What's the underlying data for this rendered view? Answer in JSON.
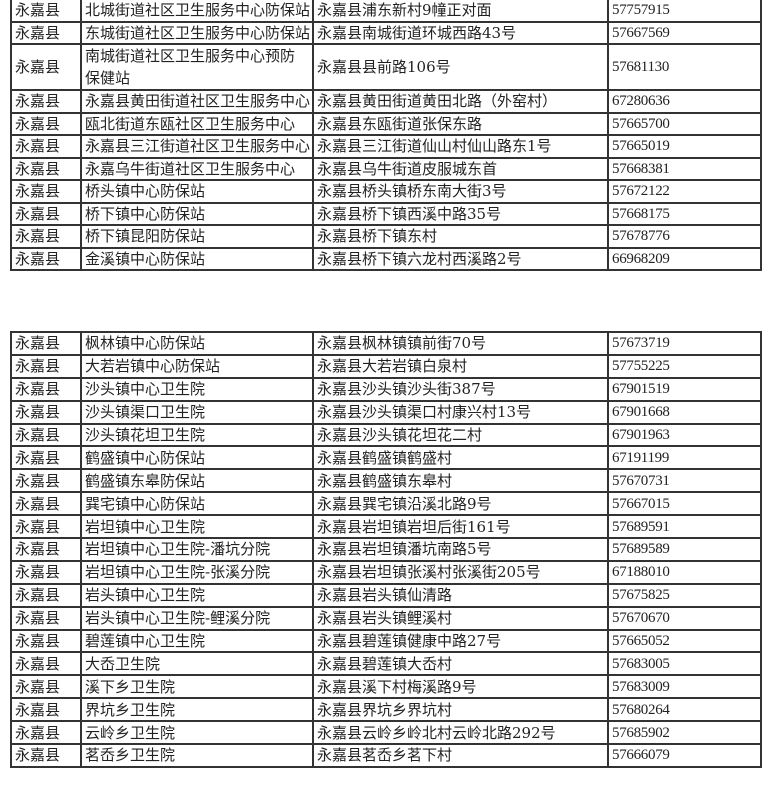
{
  "tables": [
    {
      "rows": [
        [
          "永嘉县",
          "北城街道社区卫生服务中心防保站",
          "永嘉县浦东新村9幢正对面",
          "57757915"
        ],
        [
          "永嘉县",
          "东城街道社区卫生服务中心防保站",
          "永嘉县南城街道环城西路43号",
          "57667569"
        ],
        [
          "永嘉县",
          "南城街道社区卫生服务中心预防保健站",
          "永嘉县县前路106号",
          "57681130"
        ],
        [
          "永嘉县",
          "永嘉县黄田街道社区卫生服务中心",
          "永嘉县黄田街道黄田北路（外窑村）",
          "67280636"
        ],
        [
          "永嘉县",
          "瓯北街道东瓯社区卫生服务中心",
          "永嘉县东瓯街道张保东路",
          "57665700"
        ],
        [
          "永嘉县",
          "永嘉县三江街道社区卫生服务中心",
          "永嘉县三江街道仙山村仙山路东1号",
          "57665019"
        ],
        [
          "永嘉县",
          "永嘉乌牛街道社区卫生服务中心",
          "永嘉县乌牛街道皮服城东首",
          "57668381"
        ],
        [
          "永嘉县",
          "桥头镇中心防保站",
          "永嘉县桥头镇桥东南大街3号",
          "57672122"
        ],
        [
          "永嘉县",
          "桥下镇中心防保站",
          "永嘉县桥下镇西溪中路35号",
          "57668175"
        ],
        [
          "永嘉县",
          "桥下镇昆阳防保站",
          "永嘉县桥下镇东村",
          "57678776"
        ],
        [
          "永嘉县",
          "金溪镇中心防保站",
          "永嘉县桥下镇六龙村西溪路2号",
          "66968209"
        ]
      ]
    },
    {
      "rows": [
        [
          "永嘉县",
          "枫林镇中心防保站",
          "永嘉县枫林镇镇前街70号",
          "57673719"
        ],
        [
          "永嘉县",
          "大若岩镇中心防保站",
          "永嘉县大若岩镇白泉村",
          "57755225"
        ],
        [
          "永嘉县",
          "沙头镇中心卫生院",
          "永嘉县沙头镇沙头街387号",
          "67901519"
        ],
        [
          "永嘉县",
          "沙头镇渠口卫生院",
          "永嘉县沙头镇渠口村康兴村13号",
          "67901668"
        ],
        [
          "永嘉县",
          "沙头镇花坦卫生院",
          "永嘉县沙头镇花坦花二村",
          "67901963"
        ],
        [
          "永嘉县",
          "鹤盛镇中心防保站",
          "永嘉县鹤盛镇鹤盛村",
          "67191199"
        ],
        [
          "永嘉县",
          "鹤盛镇东皋防保站",
          "永嘉县鹤盛镇东皋村",
          "57670731"
        ],
        [
          "永嘉县",
          "巽宅镇中心防保站",
          "永嘉县巽宅镇沿溪北路9号",
          "57667015"
        ],
        [
          "永嘉县",
          "岩坦镇中心卫生院",
          "永嘉县岩坦镇岩坦后街161号",
          "57689591"
        ],
        [
          "永嘉县",
          "岩坦镇中心卫生院-潘坑分院",
          "永嘉县岩坦镇潘坑南路5号",
          "57689589"
        ],
        [
          "永嘉县",
          "岩坦镇中心卫生院-张溪分院",
          "永嘉县岩坦镇张溪村张溪街205号",
          "67188010"
        ],
        [
          "永嘉县",
          "岩头镇中心卫生院",
          "永嘉县岩头镇仙清路",
          "57675825"
        ],
        [
          "永嘉县",
          "岩头镇中心卫生院-鲤溪分院",
          "永嘉县岩头镇鲤溪村",
          "57670670"
        ],
        [
          "永嘉县",
          "碧莲镇中心卫生院",
          "永嘉县碧莲镇健康中路27号",
          "57665052"
        ],
        [
          "永嘉县",
          "大岙卫生院",
          "永嘉县碧莲镇大岙村",
          "57683005"
        ],
        [
          "永嘉县",
          "溪下乡卫生院",
          "永嘉县溪下村梅溪路9号",
          "57683009"
        ],
        [
          "永嘉县",
          "界坑乡卫生院",
          "永嘉县界坑乡界坑村",
          "57680264"
        ],
        [
          "永嘉县",
          "云岭乡卫生院",
          "永嘉县云岭乡岭北村云岭北路292号",
          "57685902"
        ],
        [
          "永嘉县",
          "茗岙乡卫生院",
          "永嘉县茗岙乡茗下村",
          "57666079"
        ]
      ]
    }
  ]
}
